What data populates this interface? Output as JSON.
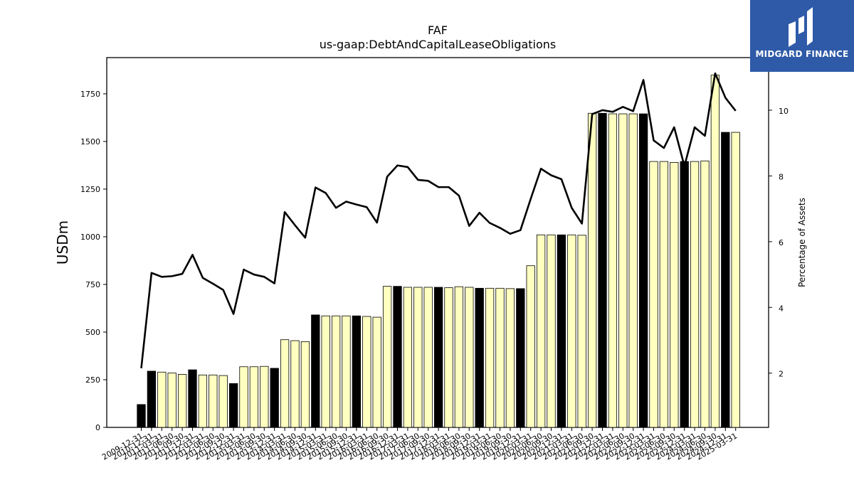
{
  "logo": {
    "text": "MIDGARD FINANCE"
  },
  "chart_data": {
    "type": "bar",
    "title": "FAF",
    "subtitle": "us-gaap:DebtAndCapitalLeaseObligations",
    "ylabel": "USDm",
    "y2label": "Percentage of Assets",
    "ylim": [
      0,
      1940
    ],
    "y2lim": [
      0.35,
      11.6
    ],
    "yticks": [
      0,
      250,
      500,
      750,
      1000,
      1250,
      1500,
      1750
    ],
    "y2ticks": [
      2,
      4,
      6,
      8,
      10
    ],
    "grid": false,
    "legend": "none",
    "colors": {
      "bar_default": "#ffffc0",
      "bar_highlight": "#000000",
      "line": "#000000"
    },
    "categories": [
      "2009-12-31",
      "2010-12-31",
      "2011-03-31",
      "2011-06-30",
      "2011-09-30",
      "2011-12-31",
      "2012-03-31",
      "2012-06-30",
      "2012-09-30",
      "2012-12-31",
      "2013-03-31",
      "2013-06-30",
      "2013-09-30",
      "2013-12-31",
      "2014-03-31",
      "2014-06-30",
      "2014-09-30",
      "2014-12-31",
      "2015-03-31",
      "2015-06-30",
      "2015-09-30",
      "2015-12-31",
      "2016-03-31",
      "2016-06-30",
      "2016-09-30",
      "2016-12-31",
      "2017-03-31",
      "2017-06-30",
      "2017-09-30",
      "2017-12-31",
      "2018-03-31",
      "2018-06-30",
      "2018-09-30",
      "2018-12-31",
      "2019-03-31",
      "2019-06-30",
      "2019-09-30",
      "2019-12-31",
      "2020-03-31",
      "2020-06-30",
      "2020-09-30",
      "2020-12-31",
      "2021-03-31",
      "2021-06-30",
      "2021-09-30",
      "2021-12-31",
      "2022-03-31",
      "2022-06-30",
      "2022-09-30",
      "2022-12-31",
      "2023-03-31",
      "2023-06-30",
      "2023-09-30",
      "2023-12-31",
      "2024-03-31",
      "2024-06-30",
      "2024-09-30",
      "2024-12-31",
      "2025-03-31"
    ],
    "series": [
      {
        "type": "bar",
        "values": [
          120,
          295,
          290,
          285,
          278,
          302,
          275,
          275,
          272,
          230,
          318,
          318,
          320,
          310,
          460,
          455,
          450,
          590,
          585,
          585,
          585,
          585,
          582,
          578,
          740,
          740,
          735,
          735,
          735,
          735,
          733,
          738,
          735,
          730,
          730,
          730,
          728,
          728,
          848,
          1010,
          1010,
          1010,
          1010,
          1008,
          1648,
          1648,
          1645,
          1645,
          1645,
          1645,
          1395,
          1395,
          1390,
          1395,
          1395,
          1398,
          1848,
          1548,
          1548
        ],
        "highlight": [
          true,
          true,
          false,
          false,
          false,
          true,
          false,
          false,
          false,
          true,
          false,
          false,
          false,
          true,
          false,
          false,
          false,
          true,
          false,
          false,
          false,
          true,
          false,
          false,
          false,
          true,
          false,
          false,
          false,
          true,
          false,
          false,
          false,
          true,
          false,
          false,
          false,
          true,
          false,
          false,
          false,
          true,
          false,
          false,
          false,
          true,
          false,
          false,
          false,
          true,
          false,
          false,
          false,
          true,
          false,
          false,
          false,
          true,
          false
        ]
      },
      {
        "type": "line",
        "axis": "right",
        "values": [
          2.15,
          5.05,
          4.93,
          4.95,
          5.02,
          5.6,
          4.9,
          4.72,
          4.53,
          3.8,
          5.15,
          5.0,
          4.93,
          4.73,
          6.9,
          6.5,
          6.12,
          7.65,
          7.48,
          7.03,
          7.22,
          7.13,
          7.05,
          6.58,
          7.98,
          8.32,
          8.27,
          7.88,
          7.85,
          7.66,
          7.66,
          7.4,
          6.48,
          6.88,
          6.57,
          6.42,
          6.24,
          6.35,
          7.3,
          8.22,
          8.02,
          7.9,
          7.03,
          6.55,
          9.88,
          10.0,
          9.95,
          10.1,
          9.97,
          10.92,
          9.08,
          8.85,
          9.48,
          8.3,
          9.48,
          9.22,
          11.12,
          10.38,
          9.98
        ]
      }
    ]
  }
}
